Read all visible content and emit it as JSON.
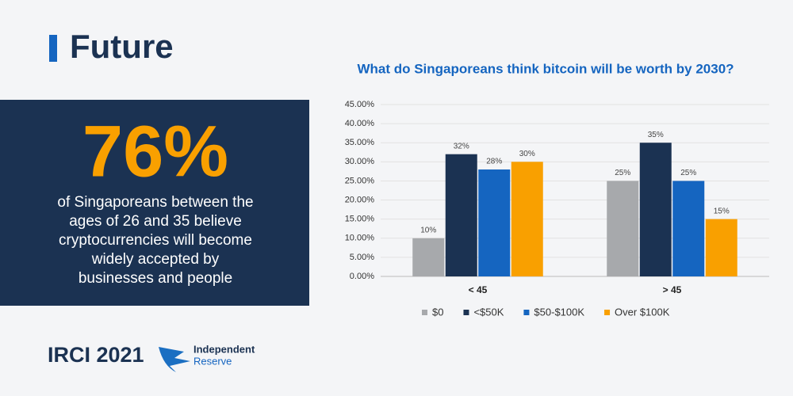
{
  "header": {
    "title": "Future"
  },
  "stat": {
    "value": "76%",
    "lines": [
      "of Singaporeans between the",
      "ages of 26 and 35 believe",
      "cryptocurrencies will become",
      "widely accepted by",
      "businesses and people"
    ]
  },
  "footer": {
    "title": "IRCI 2021",
    "logo_lines": [
      "Independent",
      "Reserve"
    ]
  },
  "chart_data": {
    "type": "bar",
    "title": "What do Singaporeans think bitcoin will be worth by 2030?",
    "categories": [
      "< 45",
      "> 45"
    ],
    "series": [
      {
        "name": "$0",
        "color": "#a7a9ac",
        "values": [
          10,
          25
        ],
        "value_labels": [
          "10%",
          "25%"
        ]
      },
      {
        "name": "<$50K",
        "color": "#1b3252",
        "values": [
          32,
          35
        ],
        "value_labels": [
          "32%",
          "35%"
        ]
      },
      {
        "name": "$50-$100K",
        "color": "#1565c0",
        "values": [
          28,
          25
        ],
        "value_labels": [
          "28%",
          "25%"
        ]
      },
      {
        "name": "Over $100K",
        "color": "#f9a000",
        "values": [
          30,
          15
        ],
        "value_labels": [
          "30%",
          "15%"
        ]
      }
    ],
    "ylim": [
      0,
      45
    ],
    "yticks": [
      {
        "value": 0,
        "label": "0.00%"
      },
      {
        "value": 5,
        "label": "5.00%"
      },
      {
        "value": 10,
        "label": "10.00%"
      },
      {
        "value": 15,
        "label": "15.00%"
      },
      {
        "value": 20,
        "label": "20.00%"
      },
      {
        "value": 25,
        "label": "25.00%"
      },
      {
        "value": 30,
        "label": "30.00%"
      },
      {
        "value": 35,
        "label": "35.00%"
      },
      {
        "value": 40,
        "label": "40.00%"
      },
      {
        "value": 45,
        "label": "45.00%"
      }
    ],
    "grid": true,
    "legend": "bottom"
  }
}
